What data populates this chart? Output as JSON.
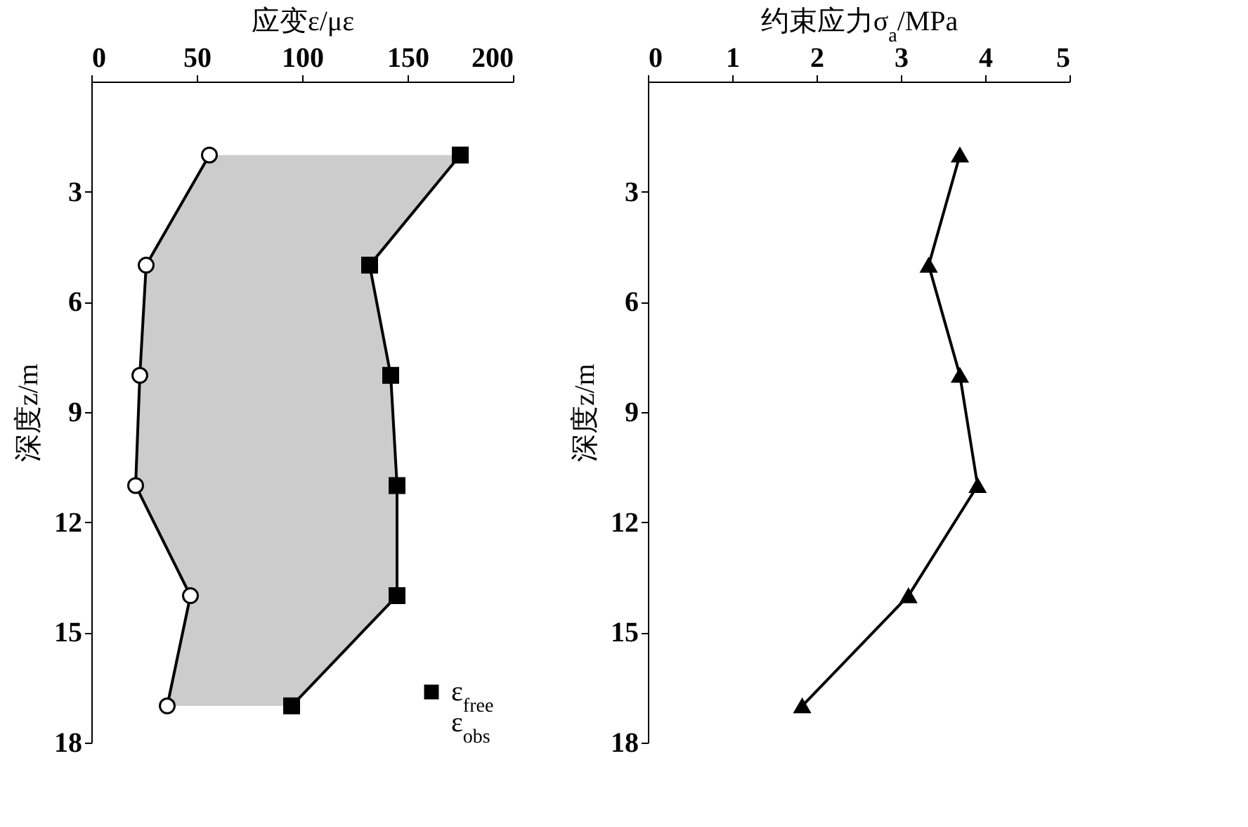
{
  "chart_data": [
    {
      "type": "line",
      "orientation": "horizontal",
      "xlabel": "应变ε/με",
      "ylabel": "深度z/m",
      "xlim": [
        0,
        200
      ],
      "xticks": [
        0,
        50,
        100,
        150,
        200
      ],
      "ylim": [
        18,
        0
      ],
      "yticks": [
        3,
        6,
        9,
        12,
        15,
        18
      ],
      "grid": false,
      "legend": "bottom right",
      "series": [
        {
          "name": "ε$_{free}$",
          "color": "#000000",
          "marker": "square",
          "x": [
            2,
            5,
            8,
            11,
            14,
            17
          ],
          "values": [
            175,
            132,
            142,
            145,
            145,
            95
          ],
          "lower": [
            56,
            26,
            23,
            21,
            47,
            36
          ],
          "upper": [
            175,
            132,
            142,
            145,
            145,
            95
          ]
        },
        {
          "name": "ε$_{obs}$",
          "color": "#000000",
          "marker": "circle",
          "x": [
            2,
            5,
            8,
            11,
            14,
            17
          ],
          "values": [
            56,
            26,
            23,
            21,
            47,
            36
          ]
        }
      ]
    },
    {
      "type": "line",
      "orientation": "horizontal",
      "xlabel": "约束应力σ$_{a}$/MPa",
      "ylabel": "深度z/m",
      "xlim": [
        0,
        5
      ],
      "xticks": [
        0,
        1,
        2,
        3,
        4,
        5
      ],
      "ylim": [
        18,
        0
      ],
      "yticks": [
        3,
        6,
        9,
        12,
        15,
        18
      ],
      "grid": false,
      "series": [
        {
          "color": "#000000",
          "marker": "triangle",
          "x": [
            2,
            5,
            8,
            11,
            14,
            17
          ],
          "values": [
            3.7,
            3.33,
            3.7,
            3.91,
            3.09,
            1.83
          ]
        }
      ]
    }
  ]
}
